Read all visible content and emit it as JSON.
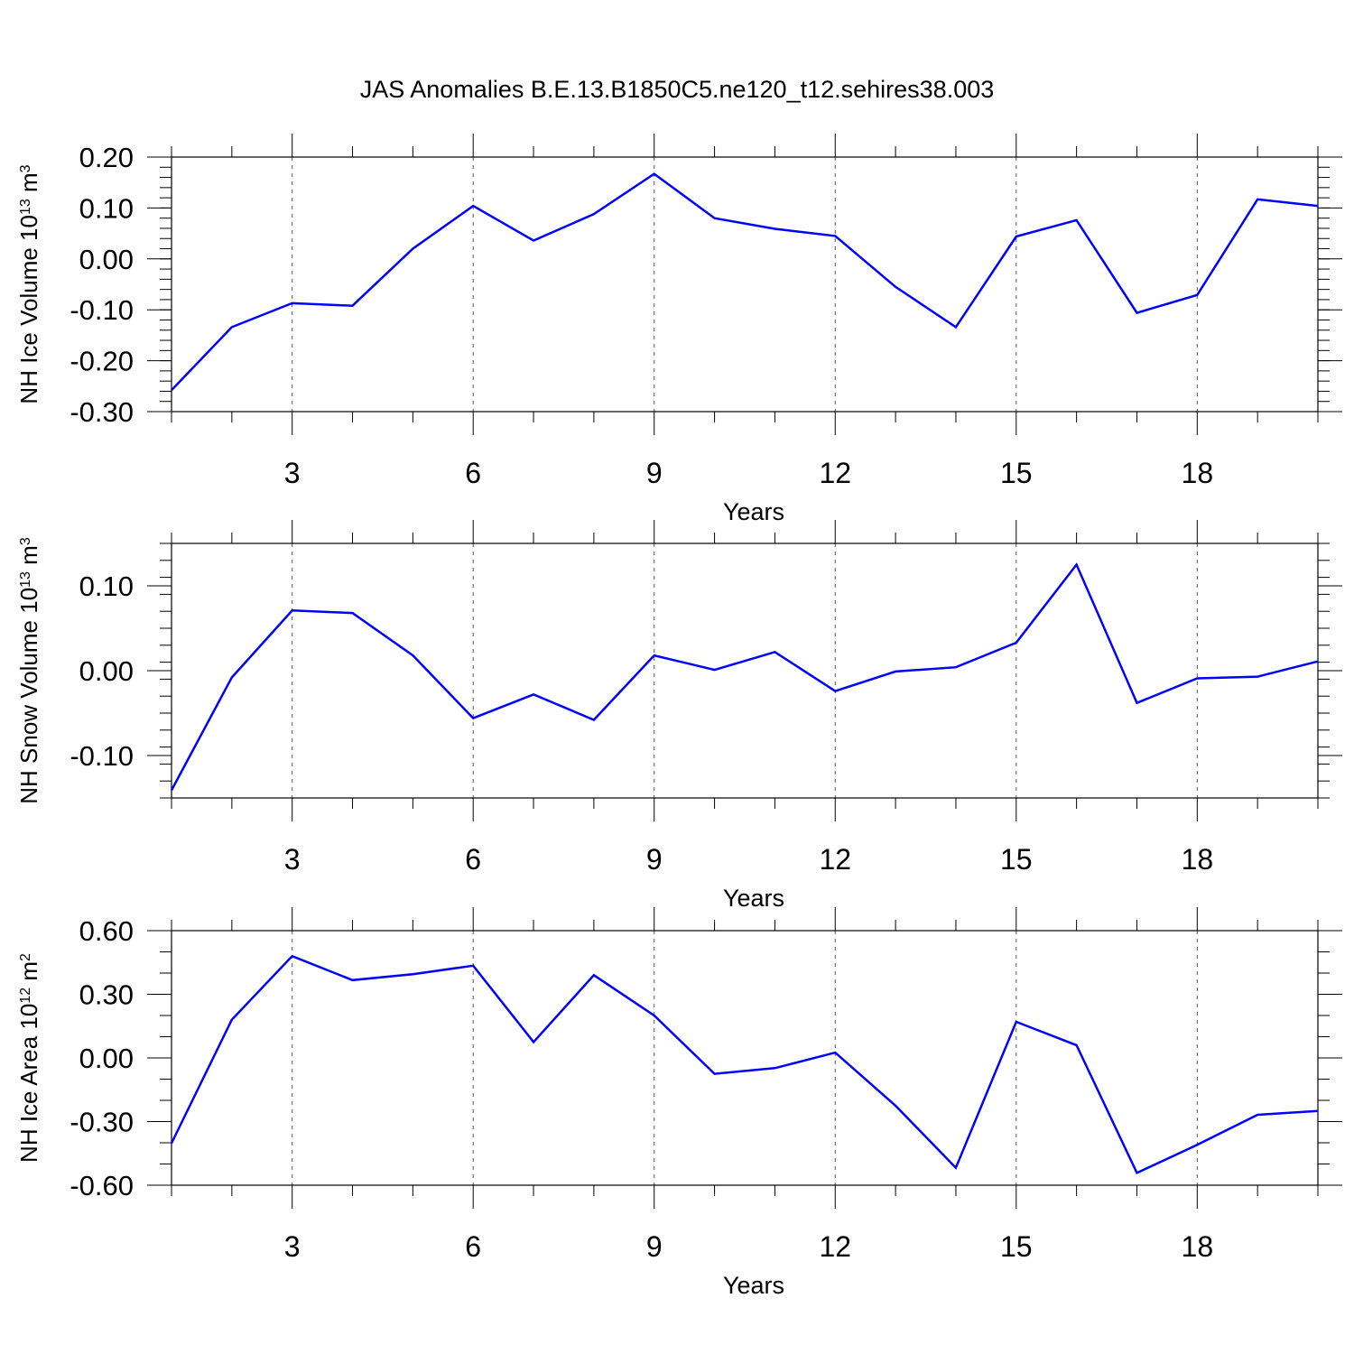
{
  "title": "JAS Anomalies B.E.13.B1850C5.ne120_t12.sehires38.003",
  "colors": {
    "line": "#0000ff",
    "axis": "#000000",
    "grid": "#555555"
  },
  "chart_data": [
    {
      "type": "line",
      "ylabel": "NH Ice Volume 10",
      "ylabel_exp": "13",
      "ylabel_unit": " m",
      "ylabel_unit_exp": "3",
      "xlabel": "Years",
      "xlim": [
        1,
        20
      ],
      "ylim": [
        -0.3,
        0.2
      ],
      "yticks": [
        -0.3,
        -0.2,
        -0.1,
        0.0,
        0.1,
        0.2
      ],
      "ytick_labels": [
        "-0.30",
        "-0.20",
        "-0.10",
        "0.00",
        "0.10",
        "0.20"
      ],
      "xticks": [
        3,
        6,
        9,
        12,
        15,
        18
      ],
      "xtick_labels": [
        "3",
        "6",
        "9",
        "12",
        "15",
        "18"
      ],
      "grid": "vertical dashed at major x ticks",
      "series": [
        {
          "x": [
            1,
            2,
            3,
            4,
            5,
            6,
            7,
            8,
            9,
            10,
            11,
            12,
            13,
            14,
            15,
            16,
            17,
            18,
            19,
            20
          ],
          "values": [
            -0.258,
            -0.134,
            -0.087,
            -0.092,
            0.02,
            0.104,
            0.036,
            0.088,
            0.167,
            0.08,
            0.059,
            0.045,
            -0.055,
            -0.134,
            0.044,
            0.076,
            -0.106,
            -0.071,
            0.117,
            0.104
          ]
        }
      ]
    },
    {
      "type": "line",
      "ylabel": "NH Snow Volume 10",
      "ylabel_exp": "13",
      "ylabel_unit": " m",
      "ylabel_unit_exp": "3",
      "xlabel": "Years",
      "xlim": [
        1,
        20
      ],
      "ylim": [
        -0.15,
        0.15
      ],
      "yticks": [
        -0.1,
        0.0,
        0.1
      ],
      "ytick_labels": [
        "-0.10",
        "0.00",
        "0.10"
      ],
      "xticks": [
        3,
        6,
        9,
        12,
        15,
        18
      ],
      "xtick_labels": [
        "3",
        "6",
        "9",
        "12",
        "15",
        "18"
      ],
      "grid": "vertical dashed at major x ticks",
      "series": [
        {
          "x": [
            1,
            2,
            3,
            4,
            5,
            6,
            7,
            8,
            9,
            10,
            11,
            12,
            13,
            14,
            15,
            16,
            17,
            18,
            19,
            20
          ],
          "values": [
            -0.141,
            -0.008,
            0.071,
            0.068,
            0.018,
            -0.056,
            -0.028,
            -0.058,
            0.018,
            0.001,
            0.022,
            -0.024,
            -0.001,
            0.004,
            0.033,
            0.125,
            -0.038,
            -0.009,
            -0.007,
            0.011
          ]
        }
      ]
    },
    {
      "type": "line",
      "ylabel": "NH Ice Area 10",
      "ylabel_exp": "12",
      "ylabel_unit": " m",
      "ylabel_unit_exp": "2",
      "xlabel": "Years",
      "xlim": [
        1,
        20
      ],
      "ylim": [
        -0.6,
        0.6
      ],
      "yticks": [
        -0.6,
        -0.3,
        0.0,
        0.3,
        0.6
      ],
      "ytick_labels": [
        "-0.60",
        "-0.30",
        "0.00",
        "0.30",
        "0.60"
      ],
      "xticks": [
        3,
        6,
        9,
        12,
        15,
        18
      ],
      "xtick_labels": [
        "3",
        "6",
        "9",
        "12",
        "15",
        "18"
      ],
      "grid": "vertical dashed at major x ticks",
      "series": [
        {
          "x": [
            1,
            2,
            3,
            4,
            5,
            6,
            7,
            8,
            9,
            10,
            11,
            12,
            13,
            14,
            15,
            16,
            17,
            18,
            19,
            20
          ],
          "values": [
            -0.402,
            0.18,
            0.48,
            0.367,
            0.395,
            0.435,
            0.075,
            0.39,
            0.2,
            -0.075,
            -0.048,
            0.025,
            -0.225,
            -0.518,
            0.17,
            0.06,
            -0.542,
            -0.41,
            -0.268,
            -0.25
          ]
        }
      ]
    }
  ]
}
